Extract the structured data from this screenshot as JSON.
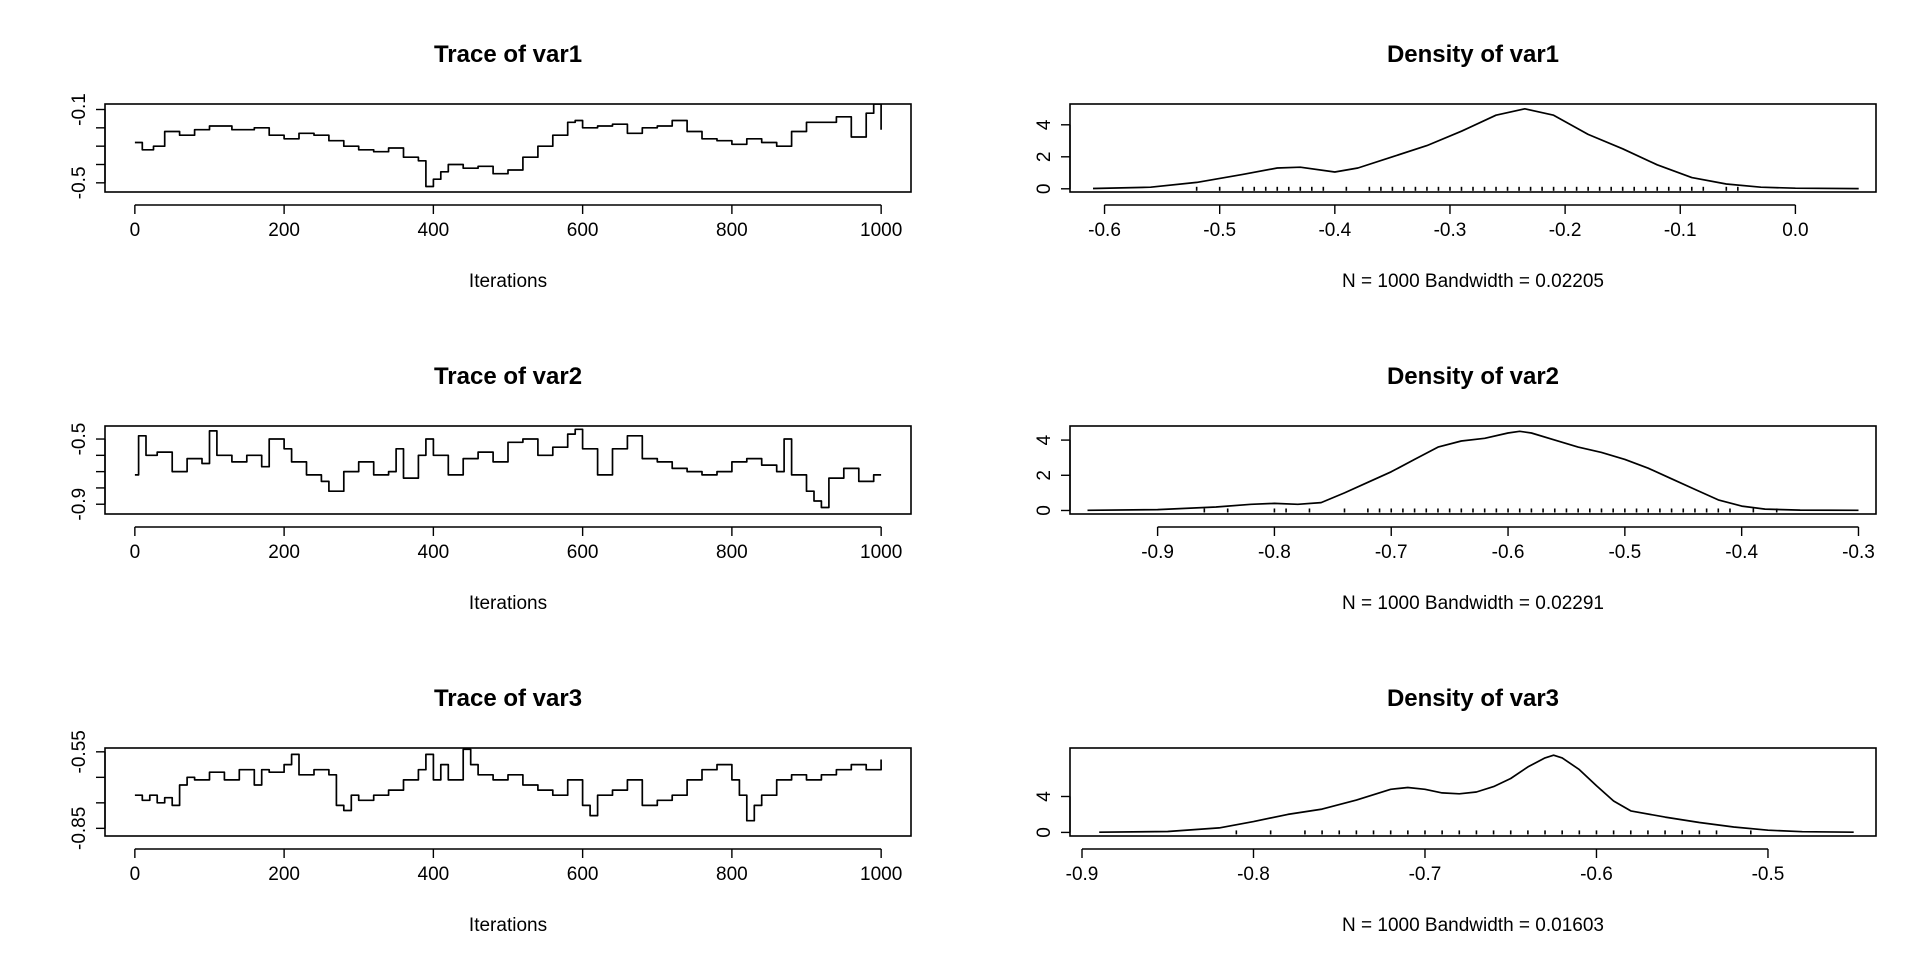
{
  "chart_data": [
    {
      "type": "line",
      "title": "Trace of var1",
      "xlabel": "Iterations",
      "xlim": [
        -40,
        1040
      ],
      "ylim": [
        -0.55,
        -0.07
      ],
      "xticks": [
        0,
        200,
        400,
        600,
        800,
        1000
      ],
      "xtick_labels": [
        "0",
        "200",
        "400",
        "600",
        "800",
        "1000"
      ],
      "yticks": [
        -0.5,
        -0.1
      ],
      "ytick_labels": [
        "-0.5",
        "-0.1"
      ],
      "ytick_minor": [
        -0.4,
        -0.3,
        -0.2
      ],
      "series": [
        {
          "x": [
            0,
            10,
            25,
            40,
            60,
            80,
            100,
            130,
            160,
            180,
            200,
            220,
            240,
            260,
            280,
            300,
            320,
            340,
            360,
            380,
            390,
            400,
            410,
            420,
            440,
            460,
            480,
            500,
            520,
            540,
            560,
            580,
            590,
            600,
            620,
            640,
            660,
            680,
            700,
            720,
            740,
            760,
            780,
            800,
            820,
            840,
            860,
            880,
            900,
            920,
            940,
            960,
            980,
            990,
            1000
          ],
          "y": [
            -0.28,
            -0.32,
            -0.3,
            -0.22,
            -0.24,
            -0.21,
            -0.19,
            -0.21,
            -0.2,
            -0.24,
            -0.26,
            -0.23,
            -0.24,
            -0.27,
            -0.3,
            -0.32,
            -0.33,
            -0.31,
            -0.36,
            -0.38,
            -0.52,
            -0.48,
            -0.44,
            -0.4,
            -0.42,
            -0.41,
            -0.45,
            -0.43,
            -0.36,
            -0.3,
            -0.24,
            -0.17,
            -0.16,
            -0.2,
            -0.19,
            -0.18,
            -0.23,
            -0.2,
            -0.19,
            -0.16,
            -0.22,
            -0.26,
            -0.27,
            -0.29,
            -0.26,
            -0.28,
            -0.3,
            -0.22,
            -0.17,
            -0.17,
            -0.14,
            -0.25,
            -0.12,
            -0.07,
            -0.21
          ]
        }
      ]
    },
    {
      "type": "line",
      "title": "Density of var1",
      "xlabel": "N = 1000   Bandwidth = 0.02205",
      "xlim": [
        -0.63,
        0.07
      ],
      "ylim": [
        -0.2,
        5.3
      ],
      "xticks": [
        -0.6,
        -0.5,
        -0.4,
        -0.3,
        -0.2,
        -0.1,
        0.0
      ],
      "xtick_labels": [
        "-0.6",
        "-0.5",
        "-0.4",
        "-0.3",
        "-0.2",
        "-0.1",
        "0.0"
      ],
      "yticks": [
        0,
        2,
        4
      ],
      "ytick_labels": [
        "0",
        "2",
        "4"
      ],
      "series": [
        {
          "x": [
            -0.61,
            -0.56,
            -0.52,
            -0.48,
            -0.45,
            -0.43,
            -0.4,
            -0.38,
            -0.35,
            -0.32,
            -0.29,
            -0.26,
            -0.235,
            -0.21,
            -0.18,
            -0.15,
            -0.12,
            -0.09,
            -0.06,
            -0.03,
            0.0,
            0.055
          ],
          "y": [
            0.02,
            0.1,
            0.4,
            0.9,
            1.3,
            1.35,
            1.05,
            1.3,
            2.0,
            2.7,
            3.6,
            4.6,
            5.0,
            4.6,
            3.4,
            2.5,
            1.5,
            0.7,
            0.3,
            0.1,
            0.04,
            0.01
          ]
        }
      ],
      "rug": [
        -0.52,
        -0.5,
        -0.48,
        -0.47,
        -0.46,
        -0.45,
        -0.44,
        -0.43,
        -0.42,
        -0.41,
        -0.39,
        -0.37,
        -0.36,
        -0.35,
        -0.34,
        -0.33,
        -0.32,
        -0.31,
        -0.3,
        -0.29,
        -0.28,
        -0.27,
        -0.26,
        -0.25,
        -0.24,
        -0.23,
        -0.22,
        -0.21,
        -0.2,
        -0.19,
        -0.18,
        -0.17,
        -0.16,
        -0.15,
        -0.14,
        -0.13,
        -0.12,
        -0.11,
        -0.1,
        -0.09,
        -0.08,
        -0.06,
        -0.05
      ]
    },
    {
      "type": "line",
      "title": "Trace of var2",
      "xlabel": "Iterations",
      "xlim": [
        -40,
        1040
      ],
      "ylim": [
        -0.96,
        -0.42
      ],
      "xticks": [
        0,
        200,
        400,
        600,
        800,
        1000
      ],
      "xtick_labels": [
        "0",
        "200",
        "400",
        "600",
        "800",
        "1000"
      ],
      "yticks": [
        -0.9,
        -0.5
      ],
      "ytick_labels": [
        "-0.9",
        "-0.5"
      ],
      "ytick_minor": [
        -0.8,
        -0.7,
        -0.6
      ],
      "series": [
        {
          "x": [
            0,
            5,
            15,
            30,
            50,
            70,
            90,
            100,
            110,
            130,
            150,
            170,
            180,
            200,
            210,
            230,
            250,
            260,
            280,
            300,
            320,
            340,
            350,
            360,
            380,
            390,
            400,
            420,
            440,
            460,
            480,
            500,
            520,
            540,
            560,
            580,
            590,
            600,
            620,
            640,
            660,
            680,
            700,
            720,
            740,
            760,
            780,
            800,
            820,
            840,
            860,
            870,
            880,
            900,
            910,
            920,
            930,
            950,
            970,
            990,
            1000
          ],
          "y": [
            -0.72,
            -0.48,
            -0.6,
            -0.58,
            -0.7,
            -0.62,
            -0.65,
            -0.45,
            -0.6,
            -0.64,
            -0.6,
            -0.67,
            -0.5,
            -0.56,
            -0.64,
            -0.72,
            -0.76,
            -0.82,
            -0.7,
            -0.64,
            -0.72,
            -0.7,
            -0.56,
            -0.74,
            -0.6,
            -0.5,
            -0.6,
            -0.72,
            -0.62,
            -0.58,
            -0.64,
            -0.52,
            -0.5,
            -0.6,
            -0.55,
            -0.47,
            -0.44,
            -0.56,
            -0.72,
            -0.56,
            -0.48,
            -0.62,
            -0.64,
            -0.68,
            -0.7,
            -0.72,
            -0.7,
            -0.64,
            -0.62,
            -0.66,
            -0.7,
            -0.5,
            -0.72,
            -0.82,
            -0.88,
            -0.92,
            -0.74,
            -0.68,
            -0.76,
            -0.72,
            -0.72
          ]
        }
      ]
    },
    {
      "type": "line",
      "title": "Density of var2",
      "xlabel": "N = 1000   Bandwidth = 0.02291",
      "xlim": [
        -0.975,
        -0.285
      ],
      "ylim": [
        -0.2,
        4.8
      ],
      "xticks": [
        -0.9,
        -0.8,
        -0.7,
        -0.6,
        -0.5,
        -0.4,
        -0.3
      ],
      "xtick_labels": [
        "-0.9",
        "-0.8",
        "-0.7",
        "-0.6",
        "-0.5",
        "-0.4",
        "-0.3"
      ],
      "yticks": [
        0,
        2,
        4
      ],
      "ytick_labels": [
        "0",
        "2",
        "4"
      ],
      "series": [
        {
          "x": [
            -0.96,
            -0.9,
            -0.85,
            -0.82,
            -0.8,
            -0.78,
            -0.76,
            -0.74,
            -0.72,
            -0.7,
            -0.68,
            -0.66,
            -0.64,
            -0.62,
            -0.6,
            -0.59,
            -0.58,
            -0.56,
            -0.54,
            -0.52,
            -0.5,
            -0.48,
            -0.46,
            -0.44,
            -0.42,
            -0.4,
            -0.38,
            -0.35,
            -0.3
          ],
          "y": [
            0.01,
            0.05,
            0.2,
            0.35,
            0.4,
            0.35,
            0.45,
            1.0,
            1.6,
            2.2,
            2.9,
            3.6,
            3.95,
            4.1,
            4.4,
            4.5,
            4.4,
            4.0,
            3.6,
            3.3,
            2.9,
            2.4,
            1.8,
            1.2,
            0.6,
            0.25,
            0.08,
            0.02,
            0.01
          ]
        }
      ],
      "rug": [
        -0.86,
        -0.84,
        -0.8,
        -0.79,
        -0.77,
        -0.74,
        -0.72,
        -0.71,
        -0.7,
        -0.69,
        -0.68,
        -0.67,
        -0.66,
        -0.65,
        -0.64,
        -0.63,
        -0.62,
        -0.61,
        -0.6,
        -0.59,
        -0.58,
        -0.57,
        -0.56,
        -0.55,
        -0.54,
        -0.53,
        -0.52,
        -0.51,
        -0.5,
        -0.49,
        -0.48,
        -0.47,
        -0.46,
        -0.45,
        -0.44,
        -0.43,
        -0.42,
        -0.41,
        -0.39,
        -0.37
      ]
    },
    {
      "type": "line",
      "title": "Trace of var3",
      "xlabel": "Iterations",
      "xlim": [
        -40,
        1040
      ],
      "ylim": [
        -0.88,
        -0.535
      ],
      "xticks": [
        0,
        200,
        400,
        600,
        800,
        1000
      ],
      "xtick_labels": [
        "0",
        "200",
        "400",
        "600",
        "800",
        "1000"
      ],
      "yticks": [
        -0.85,
        -0.55
      ],
      "ytick_labels": [
        "-0.85",
        "-0.55"
      ],
      "ytick_minor": [
        -0.75,
        -0.65
      ],
      "series": [
        {
          "x": [
            0,
            10,
            20,
            30,
            40,
            50,
            60,
            70,
            80,
            100,
            120,
            140,
            160,
            170,
            180,
            200,
            210,
            220,
            240,
            260,
            270,
            280,
            290,
            300,
            320,
            340,
            360,
            380,
            390,
            400,
            410,
            420,
            440,
            450,
            460,
            480,
            500,
            520,
            540,
            560,
            580,
            600,
            610,
            620,
            640,
            660,
            680,
            700,
            720,
            740,
            760,
            780,
            800,
            810,
            820,
            830,
            840,
            860,
            880,
            900,
            920,
            940,
            960,
            980,
            1000
          ],
          "y": [
            -0.72,
            -0.74,
            -0.72,
            -0.75,
            -0.73,
            -0.76,
            -0.68,
            -0.65,
            -0.66,
            -0.63,
            -0.66,
            -0.62,
            -0.68,
            -0.62,
            -0.63,
            -0.6,
            -0.56,
            -0.64,
            -0.62,
            -0.64,
            -0.76,
            -0.78,
            -0.72,
            -0.74,
            -0.72,
            -0.7,
            -0.66,
            -0.62,
            -0.56,
            -0.66,
            -0.6,
            -0.66,
            -0.54,
            -0.6,
            -0.64,
            -0.66,
            -0.64,
            -0.68,
            -0.7,
            -0.72,
            -0.66,
            -0.76,
            -0.8,
            -0.72,
            -0.7,
            -0.66,
            -0.76,
            -0.74,
            -0.72,
            -0.66,
            -0.62,
            -0.6,
            -0.66,
            -0.72,
            -0.82,
            -0.76,
            -0.72,
            -0.66,
            -0.64,
            -0.66,
            -0.64,
            -0.62,
            -0.6,
            -0.62,
            -0.58
          ]
        }
      ]
    },
    {
      "type": "line",
      "title": "Density of var3",
      "xlabel": "N = 1000   Bandwidth = 0.01603",
      "xlim": [
        -0.907,
        -0.437
      ],
      "ylim": [
        -0.4,
        9.4
      ],
      "xticks": [
        -0.9,
        -0.8,
        -0.7,
        -0.6,
        -0.5
      ],
      "xtick_labels": [
        "-0.9",
        "-0.8",
        "-0.7",
        "-0.6",
        "-0.5"
      ],
      "yticks": [
        0,
        4
      ],
      "ytick_labels": [
        "0",
        "4"
      ],
      "series": [
        {
          "x": [
            -0.89,
            -0.85,
            -0.82,
            -0.8,
            -0.78,
            -0.76,
            -0.74,
            -0.72,
            -0.71,
            -0.7,
            -0.69,
            -0.68,
            -0.67,
            -0.66,
            -0.65,
            -0.64,
            -0.63,
            -0.625,
            -0.62,
            -0.61,
            -0.6,
            -0.59,
            -0.58,
            -0.56,
            -0.54,
            -0.52,
            -0.5,
            -0.48,
            -0.45
          ],
          "y": [
            0.02,
            0.1,
            0.5,
            1.2,
            2.0,
            2.6,
            3.6,
            4.8,
            5.0,
            4.8,
            4.4,
            4.3,
            4.5,
            5.1,
            6.0,
            7.3,
            8.3,
            8.6,
            8.3,
            7.0,
            5.2,
            3.5,
            2.4,
            1.7,
            1.1,
            0.6,
            0.25,
            0.08,
            0.02
          ]
        }
      ],
      "rug": [
        -0.81,
        -0.79,
        -0.77,
        -0.76,
        -0.75,
        -0.74,
        -0.73,
        -0.72,
        -0.71,
        -0.7,
        -0.69,
        -0.68,
        -0.67,
        -0.66,
        -0.65,
        -0.64,
        -0.63,
        -0.62,
        -0.61,
        -0.6,
        -0.59,
        -0.58,
        -0.57,
        -0.56,
        -0.55,
        -0.54,
        -0.53,
        -0.51
      ]
    }
  ]
}
